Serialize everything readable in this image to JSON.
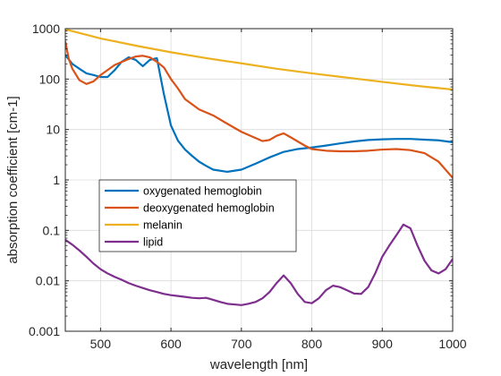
{
  "chart_data": {
    "type": "line",
    "xlabel": "wavelength [nm]",
    "ylabel": "absorption coefficient [cm-1]",
    "xlim": [
      450,
      1000
    ],
    "ylim": [
      0.001,
      1000
    ],
    "yscale": "log",
    "grid": true,
    "legend_position": "center-left",
    "x_ticks": [
      500,
      600,
      700,
      800,
      900,
      1000
    ],
    "x_tick_labels": [
      "500",
      "600",
      "700",
      "800",
      "900",
      "1000"
    ],
    "y_ticks": [
      0.001,
      0.01,
      0.1,
      1,
      10,
      100,
      1000
    ],
    "y_tick_labels": [
      "0.001",
      "0.01",
      "0.1",
      "1",
      "10",
      "100",
      "1000"
    ],
    "series": [
      {
        "name": "oxygenated hemoglobin",
        "color": "#0072BD",
        "x": [
          450,
          460,
          470,
          480,
          490,
          500,
          510,
          520,
          530,
          540,
          550,
          560,
          570,
          580,
          590,
          600,
          610,
          620,
          630,
          640,
          650,
          660,
          680,
          700,
          720,
          740,
          760,
          780,
          800,
          820,
          840,
          860,
          880,
          900,
          920,
          940,
          960,
          980,
          1000
        ],
        "y": [
          300,
          200,
          160,
          130,
          120,
          110,
          110,
          150,
          220,
          270,
          240,
          180,
          240,
          260,
          50,
          12,
          6,
          4,
          3,
          2.3,
          1.9,
          1.6,
          1.45,
          1.6,
          2.1,
          2.8,
          3.6,
          4.1,
          4.4,
          4.8,
          5.3,
          5.8,
          6.2,
          6.4,
          6.5,
          6.5,
          6.3,
          6.1,
          5.6
        ]
      },
      {
        "name": "deoxygenated hemoglobin",
        "color": "#D95319",
        "x": [
          450,
          455,
          460,
          470,
          480,
          490,
          500,
          520,
          540,
          550,
          560,
          570,
          580,
          590,
          600,
          610,
          620,
          640,
          660,
          680,
          700,
          720,
          730,
          740,
          750,
          760,
          770,
          780,
          790,
          800,
          820,
          840,
          860,
          880,
          900,
          920,
          940,
          960,
          980,
          1000
        ],
        "y": [
          550,
          250,
          160,
          95,
          80,
          90,
          120,
          190,
          250,
          280,
          290,
          270,
          220,
          170,
          100,
          65,
          40,
          25,
          19,
          13,
          9,
          6.8,
          5.9,
          6.2,
          7.5,
          8.4,
          7,
          5.8,
          4.8,
          4.1,
          3.8,
          3.7,
          3.7,
          3.8,
          4,
          4.1,
          3.9,
          3.4,
          2.3,
          1.1
        ]
      },
      {
        "name": "melanin",
        "color": "#EDB120",
        "x": [
          450,
          500,
          550,
          600,
          650,
          700,
          750,
          800,
          850,
          900,
          950,
          1000
        ],
        "y": [
          970,
          640,
          460,
          340,
          260,
          205,
          160,
          130,
          107,
          88,
          73,
          62
        ]
      },
      {
        "name": "lipid",
        "color": "#7E2F8E",
        "x": [
          450,
          460,
          470,
          480,
          490,
          500,
          510,
          520,
          530,
          540,
          550,
          560,
          570,
          580,
          590,
          600,
          610,
          620,
          630,
          640,
          650,
          660,
          670,
          680,
          690,
          700,
          710,
          720,
          730,
          740,
          750,
          760,
          770,
          780,
          790,
          800,
          810,
          820,
          830,
          840,
          850,
          860,
          870,
          880,
          890,
          900,
          910,
          920,
          930,
          940,
          950,
          960,
          970,
          980,
          990,
          1000
        ],
        "y": [
          0.065,
          0.052,
          0.04,
          0.03,
          0.022,
          0.017,
          0.014,
          0.012,
          0.0105,
          0.009,
          0.008,
          0.0072,
          0.0065,
          0.006,
          0.0055,
          0.0052,
          0.005,
          0.0048,
          0.0046,
          0.0045,
          0.0046,
          0.0042,
          0.0038,
          0.0035,
          0.0034,
          0.0033,
          0.0035,
          0.0038,
          0.0045,
          0.006,
          0.009,
          0.0128,
          0.009,
          0.0055,
          0.0038,
          0.0036,
          0.0045,
          0.0065,
          0.008,
          0.0075,
          0.0065,
          0.0056,
          0.0055,
          0.0075,
          0.014,
          0.03,
          0.05,
          0.08,
          0.13,
          0.11,
          0.05,
          0.025,
          0.016,
          0.014,
          0.017,
          0.027
        ]
      }
    ]
  }
}
